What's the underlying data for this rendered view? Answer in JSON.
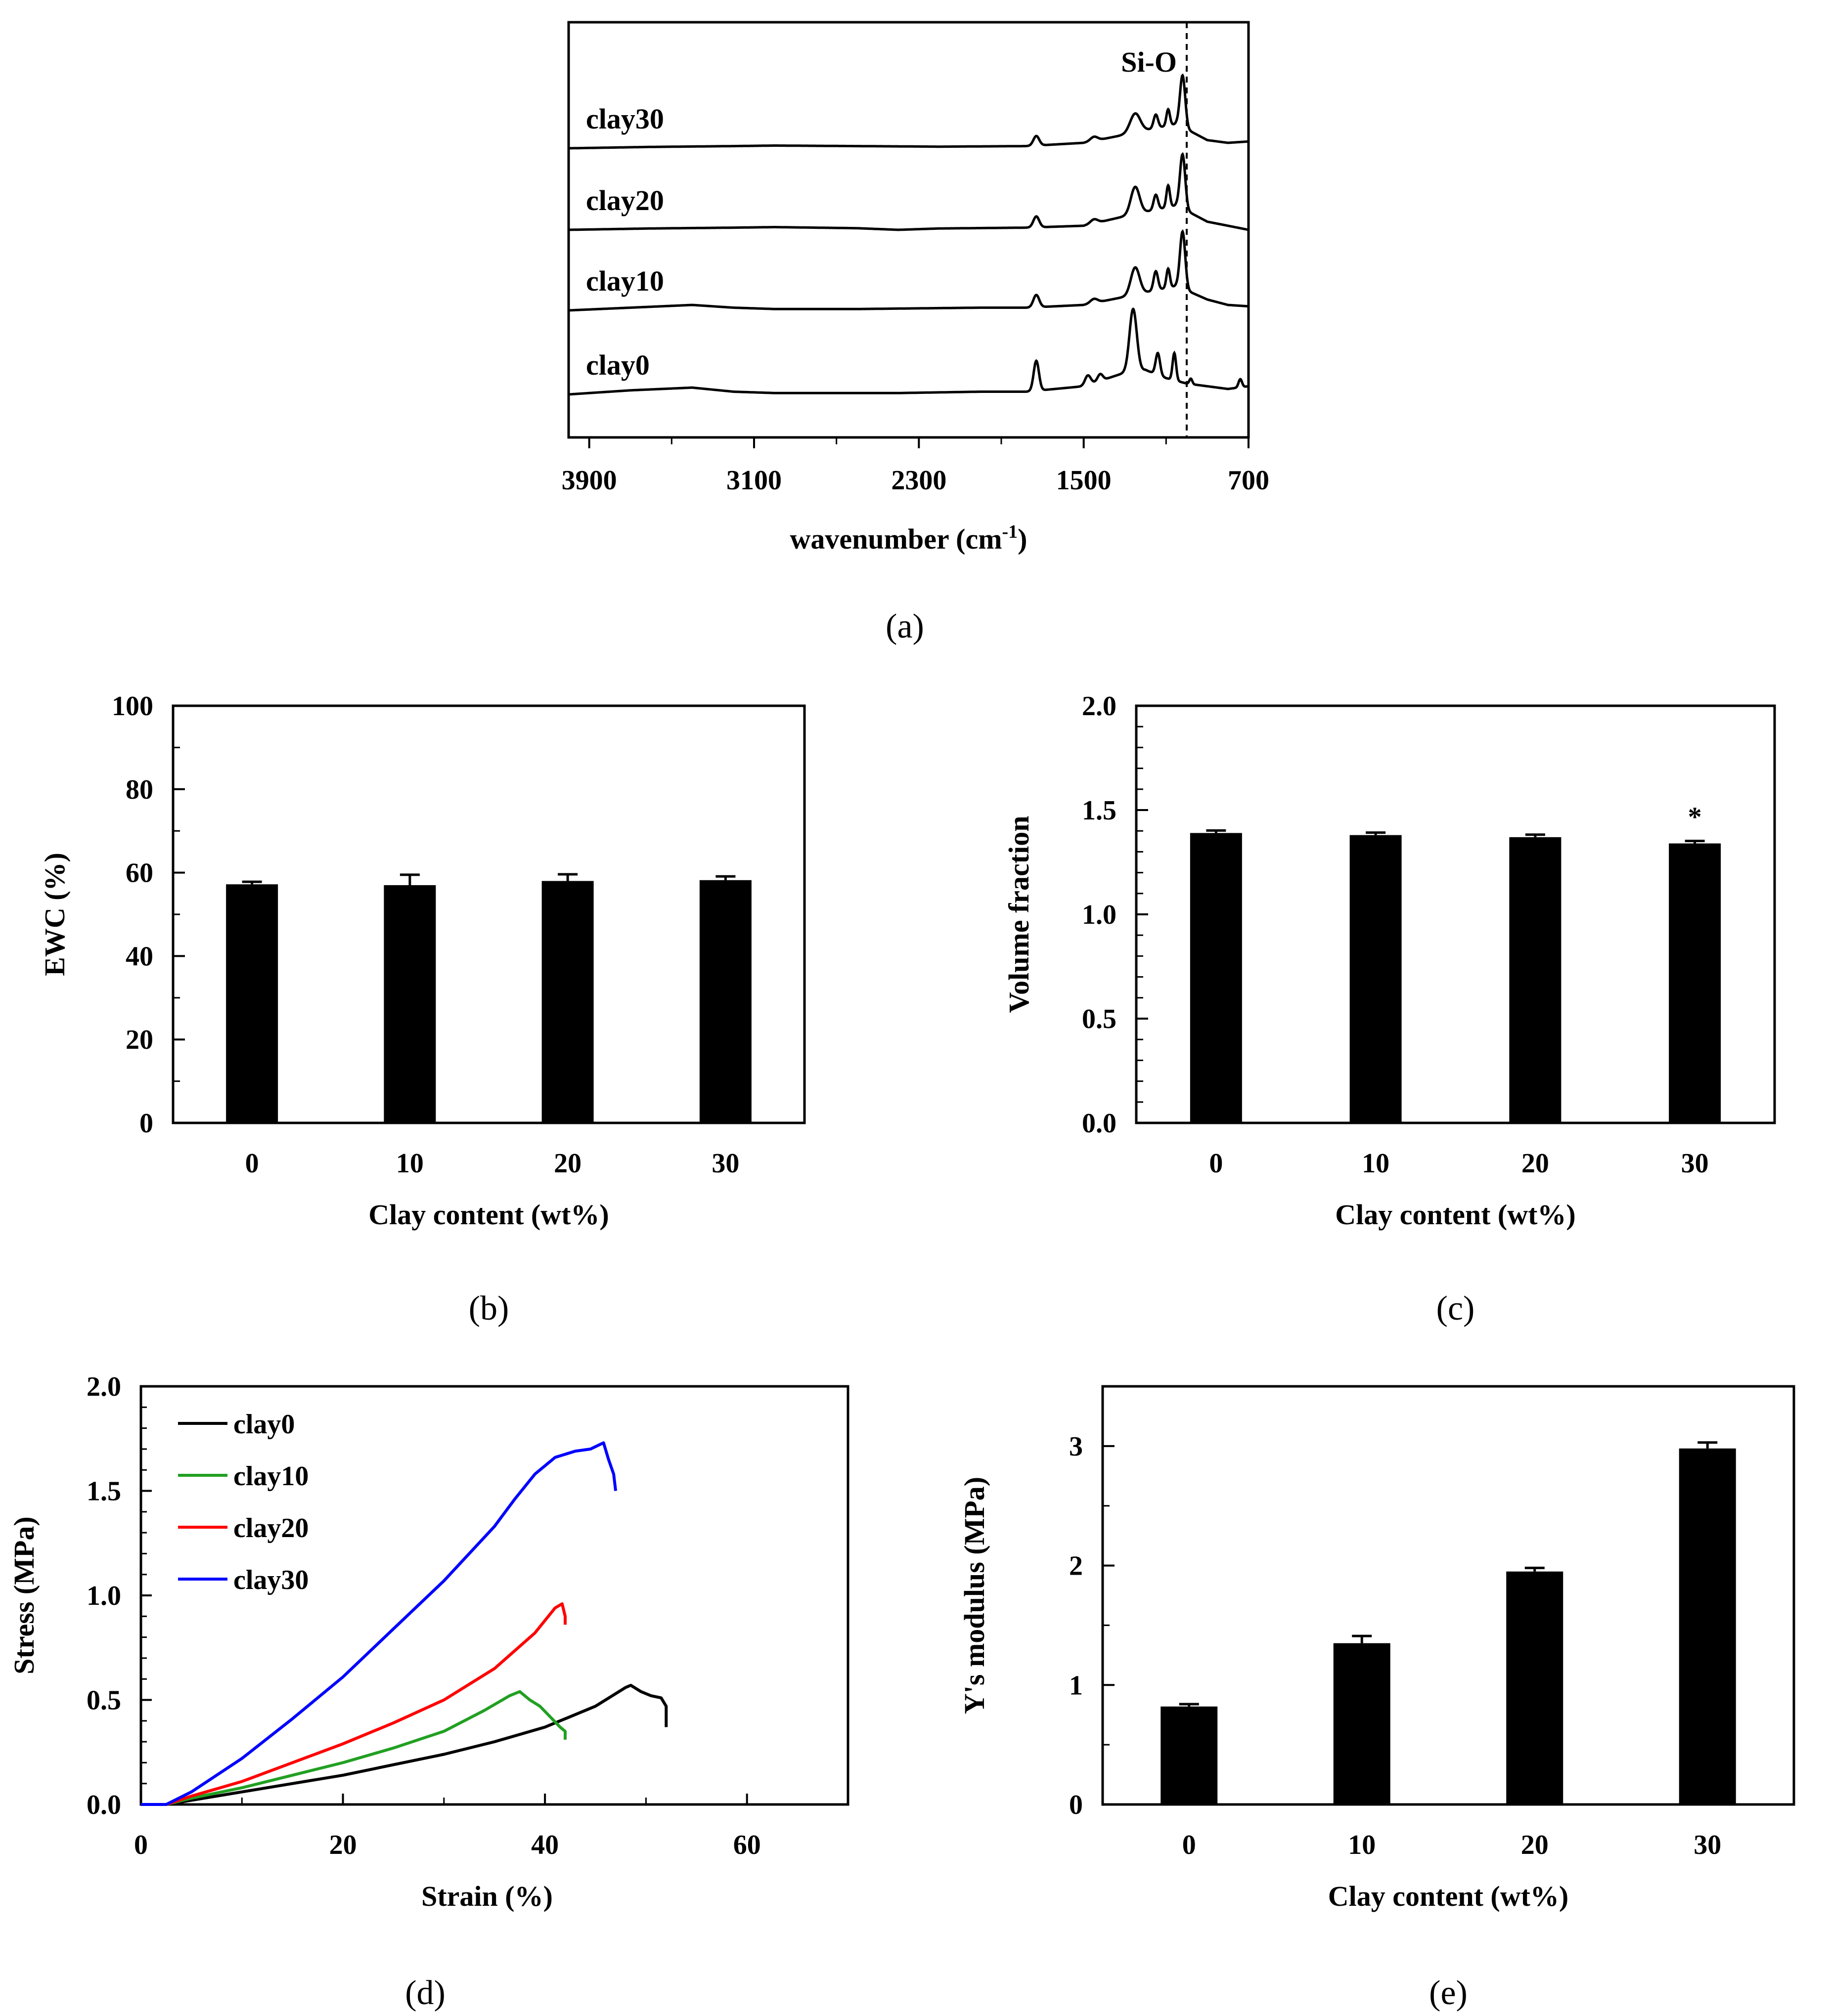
{
  "chart_data": [
    {
      "panel": "a",
      "type": "line",
      "caption": "a",
      "xlabel": "wavenumber (cm",
      "xlabel_sup": "-1",
      "xlabel_end": ")",
      "xlim": [
        4000,
        700
      ],
      "xticks": [
        "3900",
        "3100",
        "2300",
        "1500",
        "700"
      ],
      "xtick_values": [
        3900,
        3100,
        2300,
        1500,
        700
      ],
      "annotation": {
        "text": "Si-O",
        "x": 1000
      },
      "series": [
        {
          "name": "clay30",
          "label": "clay30",
          "offset": 3,
          "baseline": [
            [
              4000,
              0
            ],
            [
              3600,
              0.05
            ],
            [
              3200,
              0.08
            ],
            [
              3000,
              0.1
            ],
            [
              2600,
              0.08
            ],
            [
              2200,
              0.06
            ],
            [
              1780,
              0.08
            ],
            [
              1500,
              0.2
            ],
            [
              1300,
              0.5
            ],
            [
              1050,
              0.9
            ],
            [
              900,
              0.3
            ],
            [
              800,
              0.2
            ],
            [
              700,
              0.25
            ]
          ],
          "peaks": [
            [
              1730,
              0.35,
              20
            ],
            [
              1450,
              0.15,
              25
            ],
            [
              1250,
              0.7,
              35
            ],
            [
              1150,
              0.5,
              15
            ],
            [
              1090,
              0.6,
              12
            ],
            [
              1020,
              1.9,
              18
            ]
          ]
        },
        {
          "name": "clay20",
          "label": "clay20",
          "offset": 2,
          "baseline": [
            [
              4000,
              0
            ],
            [
              3600,
              0.05
            ],
            [
              3200,
              0.08
            ],
            [
              3000,
              0.1
            ],
            [
              2600,
              0.06
            ],
            [
              2400,
              0.0
            ],
            [
              2200,
              0.05
            ],
            [
              1780,
              0.08
            ],
            [
              1500,
              0.15
            ],
            [
              1300,
              0.5
            ],
            [
              1050,
              0.9
            ],
            [
              900,
              0.3
            ],
            [
              800,
              0.15
            ],
            [
              700,
              0.0
            ]
          ],
          "peaks": [
            [
              1730,
              0.4,
              20
            ],
            [
              1450,
              0.15,
              25
            ],
            [
              1250,
              1.0,
              30
            ],
            [
              1150,
              0.55,
              15
            ],
            [
              1090,
              0.8,
              12
            ],
            [
              1020,
              2.0,
              18
            ]
          ]
        },
        {
          "name": "clay10",
          "label": "clay10",
          "offset": 1,
          "baseline": [
            [
              4000,
              0
            ],
            [
              3700,
              0.1
            ],
            [
              3400,
              0.2
            ],
            [
              3200,
              0.1
            ],
            [
              3000,
              0.05
            ],
            [
              2600,
              0.05
            ],
            [
              2000,
              0.1
            ],
            [
              1780,
              0.1
            ],
            [
              1500,
              0.2
            ],
            [
              1300,
              0.5
            ],
            [
              1050,
              0.9
            ],
            [
              900,
              0.4
            ],
            [
              800,
              0.2
            ],
            [
              700,
              0.15
            ]
          ],
          "peaks": [
            [
              1730,
              0.45,
              20
            ],
            [
              1450,
              0.15,
              25
            ],
            [
              1250,
              1.0,
              30
            ],
            [
              1150,
              0.7,
              15
            ],
            [
              1090,
              0.7,
              12
            ],
            [
              1020,
              2.1,
              18
            ]
          ]
        },
        {
          "name": "clay0",
          "label": "clay0",
          "offset": 0,
          "baseline": [
            [
              4000,
              0
            ],
            [
              3700,
              0.15
            ],
            [
              3400,
              0.25
            ],
            [
              3200,
              0.1
            ],
            [
              3000,
              0.05
            ],
            [
              2400,
              0.05
            ],
            [
              2000,
              0.1
            ],
            [
              1780,
              0.1
            ],
            [
              1500,
              0.3
            ],
            [
              1300,
              0.8
            ],
            [
              1200,
              0.9
            ],
            [
              1100,
              0.6
            ],
            [
              1000,
              0.4
            ],
            [
              900,
              0.3
            ],
            [
              800,
              0.2
            ],
            [
              700,
              0.3
            ]
          ],
          "peaks": [
            [
              1730,
              1.1,
              18
            ],
            [
              1480,
              0.35,
              20
            ],
            [
              1420,
              0.25,
              18
            ],
            [
              1260,
              2.3,
              25
            ],
            [
              1140,
              0.8,
              15
            ],
            [
              1060,
              1.0,
              12
            ],
            [
              980,
              0.2,
              10
            ],
            [
              740,
              0.3,
              12
            ]
          ]
        }
      ]
    },
    {
      "panel": "b",
      "type": "bar",
      "caption": "b",
      "categories": [
        "0",
        "10",
        "20",
        "30"
      ],
      "values": [
        57.2,
        57.0,
        58.0,
        58.2
      ],
      "errors": [
        0.6,
        2.5,
        1.6,
        0.9
      ],
      "xlabel": "Clay content (wt%)",
      "ylabel": "EWC (%)",
      "ylim": [
        0,
        100
      ],
      "yticks": [
        "0",
        "20",
        "40",
        "60",
        "80",
        "100"
      ],
      "ytick_values": [
        0,
        20,
        40,
        60,
        80,
        100
      ]
    },
    {
      "panel": "c",
      "type": "bar",
      "caption": "c",
      "categories": [
        "0",
        "10",
        "20",
        "30"
      ],
      "values": [
        1.39,
        1.38,
        1.37,
        1.34
      ],
      "errors": [
        0.012,
        0.012,
        0.012,
        0.012
      ],
      "annotation": {
        "text": "*",
        "category": "30"
      },
      "xlabel": "Clay content (wt%)",
      "ylabel": "Volume fraction",
      "ylim": [
        0,
        2.0
      ],
      "yticks": [
        "0.0",
        "0.5",
        "1.0",
        "1.5",
        "2.0"
      ],
      "ytick_values": [
        0,
        0.5,
        1.0,
        1.5,
        2.0
      ]
    },
    {
      "panel": "d",
      "type": "line",
      "caption": "d",
      "xlabel": "Strain (%)",
      "ylabel": "Stress (MPa)",
      "xlim": [
        0,
        70
      ],
      "ylim": [
        0,
        2.0
      ],
      "xticks": [
        "0",
        "20",
        "40",
        "60"
      ],
      "xtick_values": [
        0,
        20,
        40,
        60
      ],
      "yticks": [
        "0.0",
        "0.5",
        "1.0",
        "1.5",
        "2.0"
      ],
      "ytick_values": [
        0,
        0.5,
        1.0,
        1.5,
        2.0
      ],
      "legend_position": "top-left",
      "series": [
        {
          "name": "clay0",
          "color": "#000000",
          "points": [
            [
              0,
              0
            ],
            [
              2.5,
              0
            ],
            [
              5,
              0.02
            ],
            [
              10,
              0.06
            ],
            [
              15,
              0.1
            ],
            [
              20,
              0.14
            ],
            [
              25,
              0.19
            ],
            [
              30,
              0.24
            ],
            [
              35,
              0.3
            ],
            [
              40,
              0.37
            ],
            [
              45,
              0.47
            ],
            [
              48,
              0.56
            ],
            [
              48.5,
              0.57
            ],
            [
              49.5,
              0.54
            ],
            [
              50.5,
              0.52
            ],
            [
              51.5,
              0.51
            ],
            [
              52,
              0.47
            ],
            [
              52,
              0.37
            ]
          ]
        },
        {
          "name": "clay10",
          "color": "#22a022",
          "points": [
            [
              0,
              0
            ],
            [
              2.5,
              0
            ],
            [
              5,
              0.03
            ],
            [
              10,
              0.08
            ],
            [
              15,
              0.14
            ],
            [
              20,
              0.2
            ],
            [
              25,
              0.27
            ],
            [
              30,
              0.35
            ],
            [
              34,
              0.45
            ],
            [
              36.5,
              0.52
            ],
            [
              37.5,
              0.54
            ],
            [
              38.5,
              0.5
            ],
            [
              39.5,
              0.47
            ],
            [
              40.5,
              0.42
            ],
            [
              41.5,
              0.37
            ],
            [
              42,
              0.35
            ],
            [
              42,
              0.31
            ]
          ]
        },
        {
          "name": "clay20",
          "color": "#ff0000",
          "points": [
            [
              0,
              0
            ],
            [
              2.5,
              0
            ],
            [
              5,
              0.04
            ],
            [
              10,
              0.11
            ],
            [
              15,
              0.2
            ],
            [
              20,
              0.29
            ],
            [
              25,
              0.39
            ],
            [
              30,
              0.5
            ],
            [
              35,
              0.65
            ],
            [
              39,
              0.82
            ],
            [
              41,
              0.94
            ],
            [
              41.7,
              0.96
            ],
            [
              42,
              0.9
            ],
            [
              42,
              0.86
            ]
          ]
        },
        {
          "name": "clay30",
          "color": "#0000ff",
          "points": [
            [
              0,
              0
            ],
            [
              2.5,
              0
            ],
            [
              5,
              0.06
            ],
            [
              10,
              0.22
            ],
            [
              15,
              0.41
            ],
            [
              20,
              0.61
            ],
            [
              25,
              0.84
            ],
            [
              30,
              1.07
            ],
            [
              35,
              1.33
            ],
            [
              37,
              1.46
            ],
            [
              39,
              1.58
            ],
            [
              41,
              1.66
            ],
            [
              43,
              1.69
            ],
            [
              44.5,
              1.7
            ],
            [
              45.8,
              1.73
            ],
            [
              46.3,
              1.65
            ],
            [
              46.8,
              1.58
            ],
            [
              47,
              1.5
            ]
          ]
        }
      ]
    },
    {
      "panel": "e",
      "type": "bar",
      "caption": "e",
      "categories": [
        "0",
        "10",
        "20",
        "30"
      ],
      "values": [
        0.82,
        1.35,
        1.95,
        2.98
      ],
      "errors": [
        0.02,
        0.06,
        0.03,
        0.05
      ],
      "xlabel": "Clay content (wt%)",
      "ylabel": "Y's modulus (MPa)",
      "ylim": [
        0,
        3.5
      ],
      "yticks": [
        "0",
        "1",
        "2",
        "3"
      ],
      "ytick_values": [
        0,
        1,
        2,
        3
      ]
    }
  ]
}
